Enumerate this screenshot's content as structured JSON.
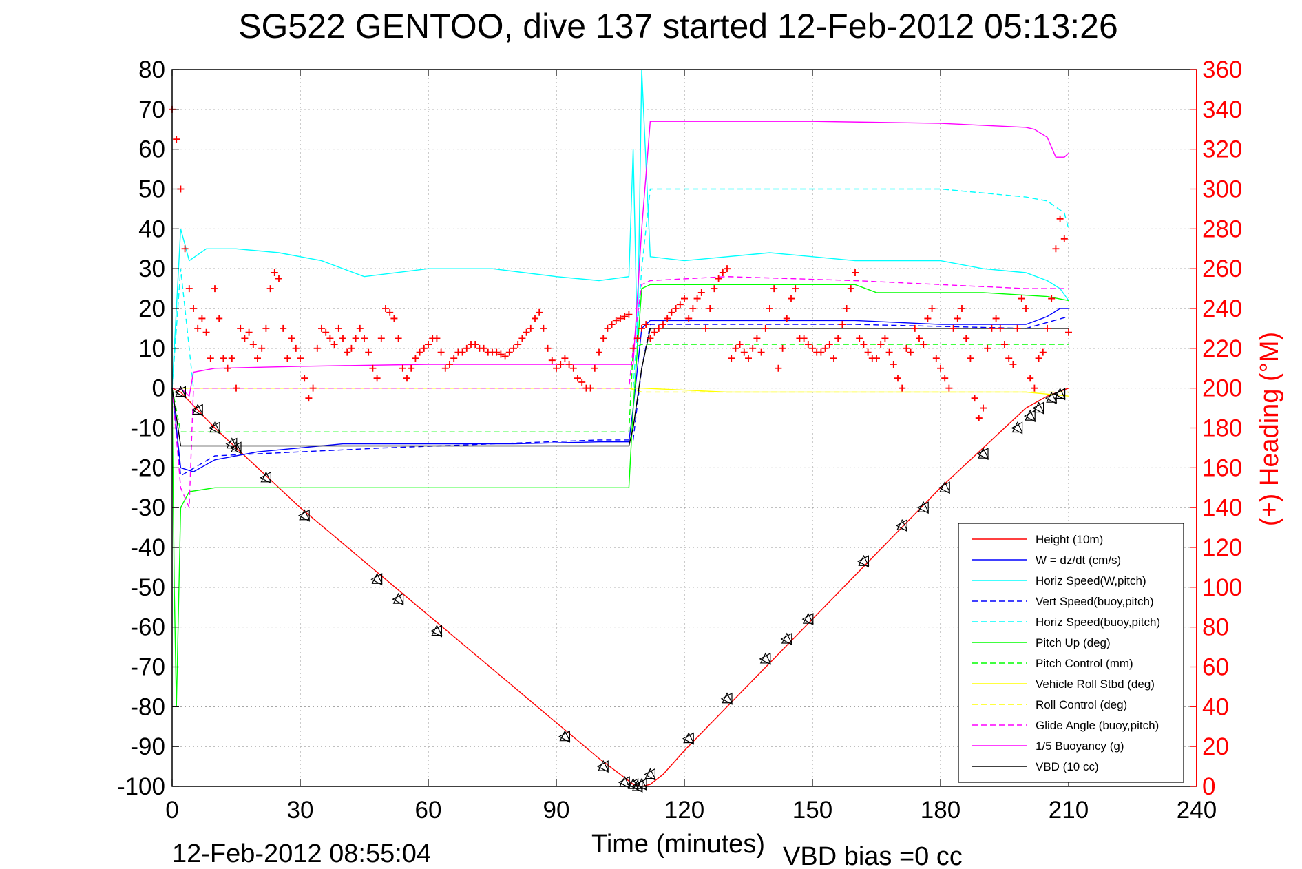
{
  "chart_data": {
    "type": "line",
    "title": "SG522 GENTOO, dive 137 started 12-Feb-2012 05:13:26",
    "xlabel": "Time (minutes)",
    "ylabel_right": "(+) Heading (°M)",
    "footer_left": "12-Feb-2012 08:55:04",
    "footer_right": "VBD bias =0 cc",
    "xlim": [
      0,
      240
    ],
    "ylim": [
      -100,
      80
    ],
    "ylim_right": [
      0,
      360
    ],
    "xticks": [
      0,
      30,
      60,
      90,
      120,
      150,
      180,
      210,
      240
    ],
    "yticks": [
      -100,
      -90,
      -80,
      -70,
      -60,
      -50,
      -40,
      -30,
      -20,
      -10,
      0,
      10,
      20,
      30,
      40,
      50,
      60,
      70,
      80
    ],
    "yticks_right": [
      0,
      20,
      40,
      60,
      80,
      100,
      120,
      140,
      160,
      180,
      200,
      220,
      240,
      260,
      280,
      300,
      320,
      340,
      360
    ],
    "grid": true,
    "legend_position": "bottom-right",
    "series": [
      {
        "name": "Height (10m)",
        "color": "#ff0000",
        "style": "solid",
        "x": [
          0,
          2,
          10,
          20,
          30,
          40,
          50,
          60,
          70,
          80,
          90,
          100,
          105,
          108,
          110,
          112,
          115,
          120,
          130,
          140,
          150,
          160,
          170,
          180,
          190,
          200,
          205,
          210
        ],
        "y": [
          0,
          -1,
          -10,
          -20,
          -30,
          -39,
          -48,
          -57,
          -66,
          -75,
          -84,
          -93,
          -97,
          -99.5,
          -100,
          -99.5,
          -97,
          -91,
          -80,
          -69,
          -58,
          -47,
          -36,
          -25,
          -15,
          -5,
          -2,
          0
        ]
      },
      {
        "name": "W = dz/dt (cm/s)",
        "color": "#0000ff",
        "style": "solid",
        "x": [
          0,
          1,
          2,
          5,
          10,
          20,
          30,
          40,
          60,
          80,
          100,
          107,
          108,
          109,
          110,
          112,
          120,
          140,
          160,
          180,
          200,
          205,
          208,
          210
        ],
        "y": [
          0,
          -10,
          -20,
          -21,
          -18,
          -16,
          -15,
          -14,
          -14,
          -14,
          -13.5,
          -13.5,
          -5,
          5,
          15,
          17,
          17,
          17,
          17,
          16,
          16,
          18,
          20,
          20
        ]
      },
      {
        "name": "Horiz Speed(W,pitch)",
        "color": "#00ffff",
        "style": "solid",
        "x": [
          0,
          2,
          4,
          8,
          15,
          25,
          35,
          45,
          60,
          75,
          90,
          100,
          107,
          108,
          109,
          110,
          112,
          120,
          140,
          160,
          180,
          190,
          200,
          205,
          208,
          210
        ],
        "y": [
          0,
          40,
          32,
          35,
          35,
          34,
          32,
          28,
          30,
          30,
          28,
          27,
          28,
          60,
          10,
          80,
          33,
          32,
          34,
          32,
          32,
          30,
          29,
          27,
          25,
          22
        ]
      },
      {
        "name": "Vert Speed(buoy,pitch)",
        "color": "#0000ff",
        "style": "dashed",
        "x": [
          0,
          2,
          10,
          50,
          100,
          108,
          110,
          112,
          160,
          200,
          210
        ],
        "y": [
          0,
          -22,
          -17,
          -15,
          -13,
          -13,
          5,
          16,
          16,
          15,
          18
        ]
      },
      {
        "name": "Horiz Speed(buoy,pitch)",
        "color": "#00ffff",
        "style": "dashed",
        "x": [
          0,
          2,
          5,
          50,
          100,
          108,
          110,
          112,
          120,
          150,
          180,
          200,
          205,
          209,
          210
        ],
        "y": [
          0,
          30,
          0,
          0,
          0,
          0,
          30,
          50,
          50,
          50,
          50,
          48,
          47,
          44,
          40
        ]
      },
      {
        "name": "Pitch Up (deg)",
        "color": "#00ff00",
        "style": "solid",
        "x": [
          0,
          0.5,
          1,
          2,
          4,
          10,
          30,
          60,
          90,
          107,
          108,
          110,
          112,
          130,
          160,
          165,
          190,
          205,
          210
        ],
        "y": [
          0,
          -50,
          -80,
          -30,
          -26,
          -25,
          -25,
          -25,
          -25,
          -25,
          -5,
          25,
          26,
          26,
          26,
          24,
          24,
          23,
          22
        ]
      },
      {
        "name": "Pitch Control (mm)",
        "color": "#00ff00",
        "style": "dashed",
        "x": [
          0,
          2,
          107,
          108,
          110,
          210
        ],
        "y": [
          0,
          -11,
          -11,
          10,
          11,
          11
        ]
      },
      {
        "name": "Vehicle Roll Stbd (deg)",
        "color": "#ffff00",
        "style": "solid",
        "x": [
          0,
          3,
          10,
          50,
          100,
          107,
          110,
          130,
          160,
          200,
          210
        ],
        "y": [
          0,
          0,
          0,
          0,
          0,
          0,
          0,
          -1,
          -1,
          -1,
          -2
        ]
      },
      {
        "name": "Roll Control (deg)",
        "color": "#ffff00",
        "style": "dashed",
        "x": [
          0,
          3,
          107,
          110,
          210
        ],
        "y": [
          0,
          0,
          0,
          -1,
          -1
        ]
      },
      {
        "name": "Glide Angle (buoy,pitch)",
        "color": "#ff00ff",
        "style": "dashed",
        "x": [
          0,
          2,
          4,
          5,
          10,
          107,
          108,
          110,
          112,
          130,
          160,
          200,
          210
        ],
        "y": [
          0,
          -25,
          -30,
          0,
          0,
          0,
          10,
          26,
          27,
          28,
          27,
          25,
          25
        ]
      },
      {
        "name": "1/5 Buoyancy (g)",
        "color": "#ff00ff",
        "style": "solid",
        "x": [
          0,
          2,
          4,
          5,
          10,
          30,
          60,
          90,
          107,
          108,
          110,
          112,
          120,
          150,
          180,
          200,
          202,
          205,
          207,
          209,
          210
        ],
        "y": [
          0,
          0,
          -2,
          4,
          5,
          5.5,
          6,
          6,
          6,
          6,
          40,
          67,
          67,
          67,
          66.5,
          65.5,
          65,
          63,
          58,
          58,
          59
        ]
      },
      {
        "name": "VBD (10 cc)",
        "color": "#000000",
        "style": "solid",
        "x": [
          0,
          2,
          10,
          107,
          108,
          110,
          112,
          160,
          163,
          165,
          210
        ],
        "y": [
          0,
          -14.5,
          -14.5,
          -14.5,
          -10,
          5,
          15,
          15,
          15,
          15,
          15
        ]
      }
    ],
    "heading_series": {
      "name": "(+) Heading (°M)",
      "color": "#ff0000",
      "marker": "+",
      "x": [
        0,
        1,
        2,
        3,
        4,
        5,
        6,
        7,
        8,
        9,
        10,
        11,
        12,
        13,
        14,
        15,
        16,
        17,
        18,
        19,
        20,
        21,
        22,
        23,
        24,
        25,
        26,
        27,
        28,
        29,
        30,
        31,
        32,
        33,
        34,
        35,
        36,
        37,
        38,
        39,
        40,
        41,
        42,
        43,
        44,
        45,
        46,
        47,
        48,
        49,
        50,
        51,
        52,
        53,
        54,
        55,
        56,
        57,
        58,
        59,
        60,
        61,
        62,
        63,
        64,
        65,
        66,
        67,
        68,
        69,
        70,
        71,
        72,
        73,
        74,
        75,
        76,
        77,
        78,
        79,
        80,
        81,
        82,
        83,
        84,
        85,
        86,
        87,
        88,
        89,
        90,
        91,
        92,
        93,
        94,
        95,
        96,
        97,
        98,
        99,
        100,
        101,
        102,
        103,
        104,
        105,
        106,
        107,
        108,
        109,
        110,
        111,
        112,
        113,
        114,
        115,
        116,
        117,
        118,
        119,
        120,
        121,
        122,
        123,
        124,
        125,
        126,
        127,
        128,
        129,
        130,
        131,
        132,
        133,
        134,
        135,
        136,
        137,
        138,
        139,
        140,
        141,
        142,
        143,
        144,
        145,
        146,
        147,
        148,
        149,
        150,
        151,
        152,
        153,
        154,
        155,
        156,
        157,
        158,
        159,
        160,
        161,
        162,
        163,
        164,
        165,
        166,
        167,
        168,
        169,
        170,
        171,
        172,
        173,
        174,
        175,
        176,
        177,
        178,
        179,
        180,
        181,
        182,
        183,
        184,
        185,
        186,
        187,
        188,
        189,
        190,
        191,
        192,
        193,
        194,
        195,
        196,
        197,
        198,
        199,
        200,
        201,
        202,
        203,
        204,
        205,
        206,
        207,
        208,
        209,
        210
      ],
      "y": [
        340,
        325,
        300,
        270,
        250,
        240,
        230,
        235,
        228,
        215,
        250,
        235,
        215,
        210,
        215,
        200,
        230,
        225,
        228,
        222,
        215,
        220,
        230,
        250,
        258,
        255,
        230,
        215,
        225,
        220,
        215,
        205,
        195,
        200,
        220,
        230,
        228,
        225,
        222,
        230,
        225,
        218,
        220,
        225,
        230,
        225,
        218,
        210,
        205,
        225,
        240,
        238,
        235,
        225,
        210,
        205,
        210,
        215,
        218,
        220,
        222,
        225,
        225,
        218,
        210,
        212,
        215,
        218,
        218,
        220,
        222,
        222,
        220,
        220,
        218,
        218,
        218,
        217,
        216,
        218,
        220,
        222,
        225,
        228,
        230,
        235,
        238,
        230,
        220,
        214,
        210,
        212,
        215,
        212,
        210,
        205,
        203,
        200,
        200,
        210,
        218,
        225,
        230,
        232,
        234,
        235,
        236,
        237,
        220,
        225,
        230,
        232,
        225,
        228,
        230,
        232,
        235,
        238,
        240,
        242,
        245,
        235,
        240,
        245,
        248,
        230,
        240,
        250,
        255,
        258,
        260,
        215,
        220,
        222,
        218,
        215,
        220,
        225,
        218,
        230,
        240,
        250,
        210,
        220,
        235,
        245,
        250,
        225,
        225,
        222,
        220,
        218,
        218,
        220,
        222,
        215,
        225,
        232,
        240,
        250,
        258,
        225,
        222,
        218,
        215,
        215,
        222,
        225,
        218,
        212,
        205,
        200,
        220,
        218,
        230,
        225,
        222,
        235,
        240,
        215,
        210,
        205,
        200,
        230,
        235,
        240,
        225,
        215,
        195,
        185,
        190,
        220,
        230,
        235,
        230,
        222,
        215,
        212,
        230,
        245,
        240,
        205,
        200,
        215,
        218,
        230,
        245,
        270,
        285,
        275,
        228
      ]
    },
    "depth_markers": {
      "x": [
        2,
        6,
        10,
        14,
        15,
        22,
        31,
        48,
        53,
        62,
        92,
        101,
        106,
        108,
        109,
        110,
        112,
        121,
        130,
        139,
        144,
        149,
        162,
        171,
        176,
        181,
        190,
        198,
        201,
        203,
        206,
        208
      ],
      "y": [
        -1,
        -5.5,
        -10,
        -14,
        -15,
        -22.5,
        -32,
        -48,
        -53,
        -61,
        -87.5,
        -95,
        -99,
        -99.5,
        -100,
        -99.5,
        -97,
        -88,
        -78,
        -68,
        -63,
        -58,
        -43.5,
        -34.5,
        -30,
        -25,
        -16.5,
        -10,
        -7,
        -5,
        -2.5,
        -1.5
      ]
    }
  }
}
